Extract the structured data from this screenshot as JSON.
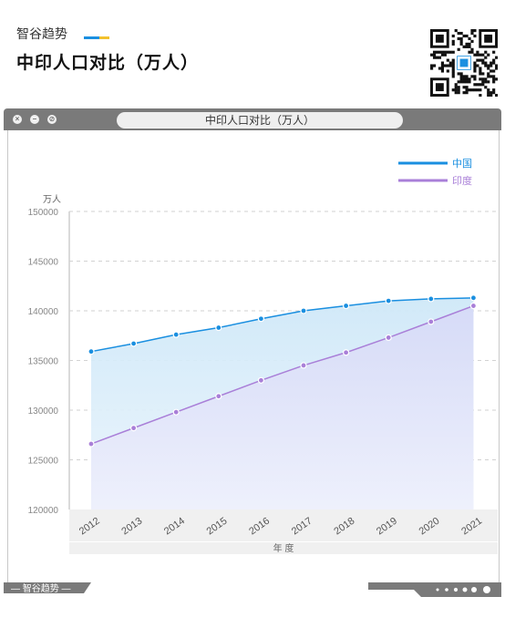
{
  "header": {
    "brand": "智谷趋势",
    "title": "中印人口对比（万人）"
  },
  "window": {
    "tab_title": "中印人口对比（万人）",
    "footer_brand": "— 智谷趋势 —"
  },
  "colors": {
    "china": "#1a8fe0",
    "india": "#a97fd8",
    "frame": "#7a7a7a",
    "brand_blue": "#1a8fe0",
    "brand_yellow": "#f2c12e"
  },
  "chart_data": {
    "type": "area",
    "title": "中印人口对比（万人）",
    "xlabel": "年 度",
    "ylabel": "万人",
    "categories": [
      "2012",
      "2013",
      "2014",
      "2015",
      "2016",
      "2017",
      "2018",
      "2019",
      "2020",
      "2021"
    ],
    "series": [
      {
        "name": "中国",
        "values": [
          135900,
          136700,
          137600,
          138300,
          139200,
          140000,
          140500,
          141000,
          141200,
          141300
        ]
      },
      {
        "name": "印度",
        "values": [
          126600,
          128200,
          129800,
          131400,
          133000,
          134500,
          135800,
          137300,
          138900,
          140500
        ]
      }
    ],
    "ylim": [
      120000,
      150000
    ],
    "yticks": [
      120000,
      125000,
      130000,
      135000,
      140000,
      145000,
      150000
    ],
    "grid": true,
    "legend": "top-right"
  }
}
